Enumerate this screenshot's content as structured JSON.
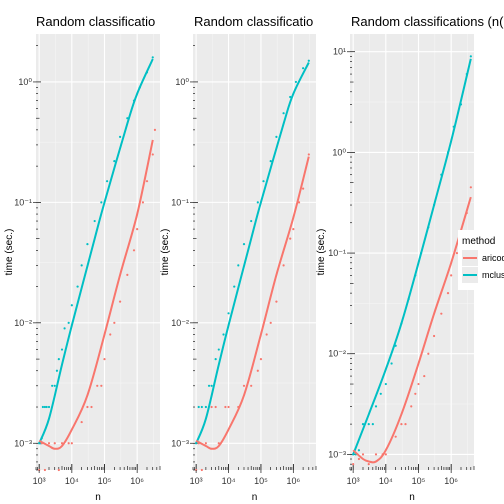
{
  "chart_data": [
    {
      "type": "scatter",
      "title": "Random classificatio",
      "xlabel": "n",
      "ylabel": "time (sec.)",
      "x_scale": "log10",
      "y_scale": "log10",
      "xlim": [
        800,
        5000000
      ],
      "ylim": [
        0.0006,
        2.5
      ],
      "x_ticks": [
        1000,
        10000,
        100000,
        1000000
      ],
      "x_tick_labels": [
        "10³",
        "10⁴",
        "10⁵",
        "10⁶"
      ],
      "y_ticks": [
        0.001,
        0.01,
        0.1,
        1
      ],
      "y_tick_labels": [
        "10⁻³",
        "10⁻²",
        "10⁻¹",
        "10⁰"
      ],
      "series": [
        {
          "color": "#00bfc4",
          "points": [
            [
              1000,
              0.001
            ],
            [
              1100,
              0.001
            ],
            [
              1200,
              0.0011
            ],
            [
              1300,
              0.002
            ],
            [
              1500,
              0.002
            ],
            [
              1700,
              0.002
            ],
            [
              2000,
              0.002
            ],
            [
              2500,
              0.003
            ],
            [
              3000,
              0.003
            ],
            [
              3500,
              0.004
            ],
            [
              4000,
              0.005
            ],
            [
              5000,
              0.006
            ],
            [
              6000,
              0.009
            ],
            [
              8000,
              0.01
            ],
            [
              10000,
              0.014
            ],
            [
              15000,
              0.02
            ],
            [
              20000,
              0.03
            ],
            [
              30000,
              0.045
            ],
            [
              50000,
              0.07
            ],
            [
              80000,
              0.1
            ],
            [
              120000,
              0.15
            ],
            [
              200000,
              0.22
            ],
            [
              300000,
              0.35
            ],
            [
              500000,
              0.5
            ],
            [
              800000,
              0.7
            ],
            [
              1200000,
              0.9
            ],
            [
              2000000,
              1.2
            ],
            [
              3000000,
              1.6
            ]
          ],
          "curve": [
            [
              1000,
              0.001
            ],
            [
              2000,
              0.0016
            ],
            [
              5000,
              0.0045
            ],
            [
              10000,
              0.0095
            ],
            [
              50000,
              0.05
            ],
            [
              100000,
              0.1
            ],
            [
              500000,
              0.45
            ],
            [
              1000000,
              0.8
            ],
            [
              3000000,
              1.55
            ]
          ]
        },
        {
          "color": "#f8766d",
          "points": [
            [
              1000,
              0.0006
            ],
            [
              1200,
              0.001
            ],
            [
              1500,
              0.0006
            ],
            [
              2000,
              0.001
            ],
            [
              3000,
              0.001
            ],
            [
              4000,
              0.0006
            ],
            [
              5000,
              0.001
            ],
            [
              8000,
              0.001
            ],
            [
              10000,
              0.001
            ],
            [
              20000,
              0.0015
            ],
            [
              30000,
              0.002
            ],
            [
              40000,
              0.002
            ],
            [
              60000,
              0.003
            ],
            [
              80000,
              0.003
            ],
            [
              100000,
              0.005
            ],
            [
              150000,
              0.008
            ],
            [
              200000,
              0.01
            ],
            [
              300000,
              0.015
            ],
            [
              500000,
              0.025
            ],
            [
              800000,
              0.04
            ],
            [
              1000000,
              0.06
            ],
            [
              1500000,
              0.1
            ],
            [
              2000000,
              0.15
            ],
            [
              3000000,
              0.25
            ],
            [
              3500000,
              0.4
            ]
          ],
          "curve": [
            [
              1000,
              0.00105
            ],
            [
              2000,
              0.00095
            ],
            [
              3000,
              0.0009
            ],
            [
              5000,
              0.00095
            ],
            [
              10000,
              0.0013
            ],
            [
              30000,
              0.0025
            ],
            [
              100000,
              0.008
            ],
            [
              300000,
              0.025
            ],
            [
              1000000,
              0.08
            ],
            [
              3000000,
              0.33
            ]
          ]
        }
      ]
    },
    {
      "type": "scatter",
      "title": "Random classificatio",
      "xlabel": "n",
      "ylabel": "time (sec.)",
      "x_scale": "log10",
      "y_scale": "log10",
      "xlim": [
        800,
        5000000
      ],
      "ylim": [
        0.0006,
        2.5
      ],
      "x_ticks": [
        1000,
        10000,
        100000,
        1000000
      ],
      "x_tick_labels": [
        "10³",
        "10⁴",
        "10⁵",
        "10⁶"
      ],
      "y_ticks": [
        0.001,
        0.01,
        0.1,
        1
      ],
      "y_tick_labels": [
        "10⁻³",
        "10⁻²",
        "10⁻¹",
        "10⁰"
      ],
      "series": [
        {
          "color": "#00bfc4",
          "points": [
            [
              1000,
              0.001
            ],
            [
              1200,
              0.002
            ],
            [
              1500,
              0.002
            ],
            [
              2000,
              0.002
            ],
            [
              2500,
              0.003
            ],
            [
              3000,
              0.003
            ],
            [
              4000,
              0.005
            ],
            [
              5000,
              0.006
            ],
            [
              7000,
              0.008
            ],
            [
              10000,
              0.012
            ],
            [
              15000,
              0.02
            ],
            [
              20000,
              0.03
            ],
            [
              30000,
              0.045
            ],
            [
              50000,
              0.07
            ],
            [
              80000,
              0.1
            ],
            [
              120000,
              0.15
            ],
            [
              200000,
              0.22
            ],
            [
              300000,
              0.35
            ],
            [
              500000,
              0.55
            ],
            [
              800000,
              0.75
            ],
            [
              1200000,
              1.0
            ],
            [
              2000000,
              1.3
            ],
            [
              3000000,
              1.5
            ]
          ],
          "curve": [
            [
              1000,
              0.001
            ],
            [
              2000,
              0.0016
            ],
            [
              5000,
              0.0045
            ],
            [
              10000,
              0.0095
            ],
            [
              50000,
              0.05
            ],
            [
              100000,
              0.1
            ],
            [
              500000,
              0.45
            ],
            [
              1000000,
              0.8
            ],
            [
              3000000,
              1.45
            ]
          ]
        },
        {
          "color": "#f8766d",
          "points": [
            [
              1000,
              0.0006
            ],
            [
              1200,
              0.001
            ],
            [
              1500,
              0.0006
            ],
            [
              2000,
              0.001
            ],
            [
              3000,
              0.002
            ],
            [
              4000,
              0.002
            ],
            [
              5000,
              0.001
            ],
            [
              8000,
              0.002
            ],
            [
              10000,
              0.002
            ],
            [
              20000,
              0.002
            ],
            [
              30000,
              0.003
            ],
            [
              50000,
              0.003
            ],
            [
              80000,
              0.004
            ],
            [
              100000,
              0.005
            ],
            [
              150000,
              0.008
            ],
            [
              200000,
              0.01
            ],
            [
              300000,
              0.015
            ],
            [
              500000,
              0.03
            ],
            [
              800000,
              0.05
            ],
            [
              1000000,
              0.06
            ],
            [
              1500000,
              0.1
            ],
            [
              2000000,
              0.13
            ],
            [
              3000000,
              0.25
            ]
          ],
          "curve": [
            [
              1000,
              0.00105
            ],
            [
              2000,
              0.00095
            ],
            [
              3000,
              0.0009
            ],
            [
              5000,
              0.00095
            ],
            [
              10000,
              0.0013
            ],
            [
              30000,
              0.0025
            ],
            [
              100000,
              0.008
            ],
            [
              300000,
              0.025
            ],
            [
              1000000,
              0.075
            ],
            [
              3000000,
              0.24
            ]
          ]
        }
      ]
    },
    {
      "type": "scatter",
      "title": "Random classifications (n(",
      "xlabel": "n",
      "ylabel": "time (sec.)",
      "x_scale": "log10",
      "y_scale": "log10",
      "xlim": [
        800,
        5000000
      ],
      "ylim": [
        0.0007,
        15
      ],
      "x_ticks": [
        1000,
        10000,
        100000,
        1000000
      ],
      "x_tick_labels": [
        "10³",
        "10⁴",
        "10⁵",
        "10⁶"
      ],
      "y_ticks": [
        0.001,
        0.01,
        0.1,
        1,
        10
      ],
      "y_tick_labels": [
        "10⁻³",
        "10⁻²",
        "10⁻¹",
        "10⁰",
        "10¹"
      ],
      "series": [
        {
          "color": "#00bfc4",
          "points": [
            [
              1000,
              0.001
            ],
            [
              1200,
              0.001
            ],
            [
              1500,
              0.0011
            ],
            [
              2000,
              0.002
            ],
            [
              3000,
              0.002
            ],
            [
              4000,
              0.002
            ],
            [
              5000,
              0.003
            ],
            [
              7000,
              0.004
            ],
            [
              10000,
              0.005
            ],
            [
              15000,
              0.008
            ],
            [
              20000,
              0.012
            ],
            [
              30000,
              0.02
            ],
            [
              50000,
              0.035
            ],
            [
              80000,
              0.06
            ],
            [
              120000,
              0.1
            ],
            [
              200000,
              0.18
            ],
            [
              300000,
              0.3
            ],
            [
              500000,
              0.6
            ],
            [
              800000,
              1.0
            ],
            [
              1200000,
              1.8
            ],
            [
              2000000,
              3.0
            ],
            [
              3000000,
              6.0
            ],
            [
              4000000,
              9.0
            ]
          ],
          "curve": [
            [
              1000,
              0.001
            ],
            [
              3000,
              0.0025
            ],
            [
              10000,
              0.007
            ],
            [
              30000,
              0.02
            ],
            [
              100000,
              0.08
            ],
            [
              300000,
              0.3
            ],
            [
              1000000,
              1.3
            ],
            [
              4000000,
              8.5
            ]
          ]
        },
        {
          "color": "#f8766d",
          "points": [
            [
              1000,
              0.0008
            ],
            [
              1500,
              0.0009
            ],
            [
              2000,
              0.001
            ],
            [
              3000,
              0.0008
            ],
            [
              5000,
              0.001
            ],
            [
              8000,
              0.001
            ],
            [
              10000,
              0.001
            ],
            [
              20000,
              0.0015
            ],
            [
              30000,
              0.002
            ],
            [
              40000,
              0.002
            ],
            [
              60000,
              0.003
            ],
            [
              80000,
              0.004
            ],
            [
              100000,
              0.005
            ],
            [
              150000,
              0.006
            ],
            [
              200000,
              0.01
            ],
            [
              300000,
              0.015
            ],
            [
              500000,
              0.025
            ],
            [
              800000,
              0.04
            ],
            [
              1000000,
              0.06
            ],
            [
              1500000,
              0.1
            ],
            [
              2000000,
              0.15
            ],
            [
              3000000,
              0.25
            ],
            [
              4000000,
              0.45
            ]
          ],
          "curve": [
            [
              1000,
              0.0011
            ],
            [
              2000,
              0.0009
            ],
            [
              3000,
              0.00085
            ],
            [
              5000,
              0.00085
            ],
            [
              10000,
              0.0011
            ],
            [
              30000,
              0.0025
            ],
            [
              100000,
              0.008
            ],
            [
              300000,
              0.025
            ],
            [
              1000000,
              0.08
            ],
            [
              4000000,
              0.36
            ]
          ]
        }
      ]
    }
  ],
  "legend": {
    "title": "method",
    "items": [
      {
        "label": "aricode",
        "color": "#f8766d"
      },
      {
        "label": "mclust",
        "color": "#00bfc4"
      }
    ]
  }
}
